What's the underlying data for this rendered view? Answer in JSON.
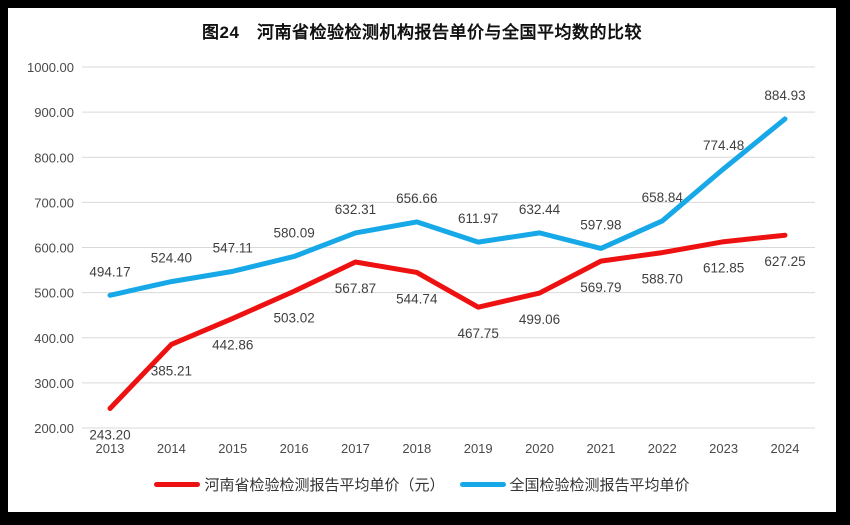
{
  "chart_data": {
    "type": "line",
    "title": "图24　河南省检验检测机构报告单价与全国平均数的比较",
    "x": [
      "2013",
      "2014",
      "2015",
      "2016",
      "2017",
      "2018",
      "2019",
      "2020",
      "2021",
      "2022",
      "2023",
      "2024"
    ],
    "series": [
      {
        "name": "河南省检验检测报告平均单价（元）",
        "color": "#EE1111",
        "label_position": "below",
        "values": [
          243.2,
          385.21,
          442.86,
          503.02,
          567.87,
          544.74,
          467.75,
          499.06,
          569.79,
          588.7,
          612.85,
          627.25
        ]
      },
      {
        "name": "全国检验检测报告平均单价",
        "color": "#17A8E8",
        "label_position": "above",
        "values": [
          494.17,
          524.4,
          547.11,
          580.09,
          632.31,
          656.66,
          611.97,
          632.44,
          597.98,
          658.84,
          774.48,
          884.93
        ]
      }
    ],
    "ylim": [
      200,
      1000
    ],
    "ytick_step": 100,
    "ytick_decimals": 2,
    "grid": "horizontal",
    "legend_position": "bottom",
    "value_labels": true
  },
  "colors": {
    "grid": "#D9D9D9",
    "axis_text": "#4a4a4a",
    "label_text": "#3f3f3f",
    "title_text": "#111111",
    "page_bg": "#ffffff",
    "frame_bg": "#000000"
  }
}
